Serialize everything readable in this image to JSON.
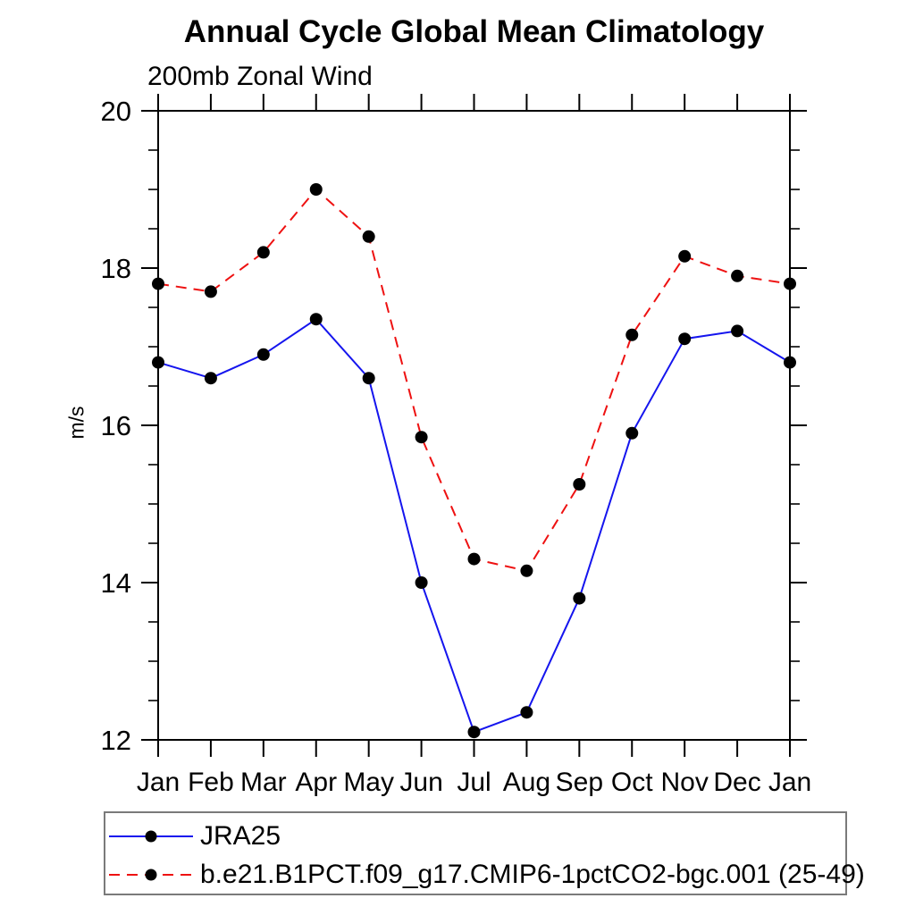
{
  "chart": {
    "title": "Annual Cycle Global Mean Climatology",
    "subtitle": "200mb Zonal Wind",
    "ylabel": "m/s"
  },
  "chart_data": {
    "type": "line",
    "title": "Annual Cycle Global Mean Climatology",
    "subtitle": "200mb Zonal Wind",
    "xlabel": "",
    "ylabel": "m/s",
    "categories": [
      "Jan",
      "Feb",
      "Mar",
      "Apr",
      "May",
      "Jun",
      "Jul",
      "Aug",
      "Sep",
      "Oct",
      "Nov",
      "Dec",
      "Jan"
    ],
    "ylim": [
      12,
      20
    ],
    "yticks": [
      12,
      14,
      16,
      18,
      20
    ],
    "y_minor_interval": 0.5,
    "grid": false,
    "legend_position": "bottom",
    "axis_color": "#000000",
    "marker_color": "#000000",
    "series": [
      {
        "name": "JRA25",
        "color": "#1515ee",
        "line_style": "solid",
        "marker": "filled-circle",
        "values": [
          16.8,
          16.6,
          16.9,
          17.35,
          16.6,
          14.0,
          12.1,
          12.35,
          13.8,
          15.9,
          17.1,
          17.2,
          16.8
        ]
      },
      {
        "name": "b.e21.B1PCT.f09_g17.CMIP6-1pctCO2-bgc.001 (25-49)",
        "color": "#ee1111",
        "line_style": "dashed",
        "marker": "filled-circle",
        "values": [
          17.8,
          17.7,
          18.2,
          19.0,
          18.4,
          15.85,
          14.3,
          14.15,
          15.25,
          17.15,
          18.15,
          17.9,
          17.8
        ]
      }
    ]
  }
}
